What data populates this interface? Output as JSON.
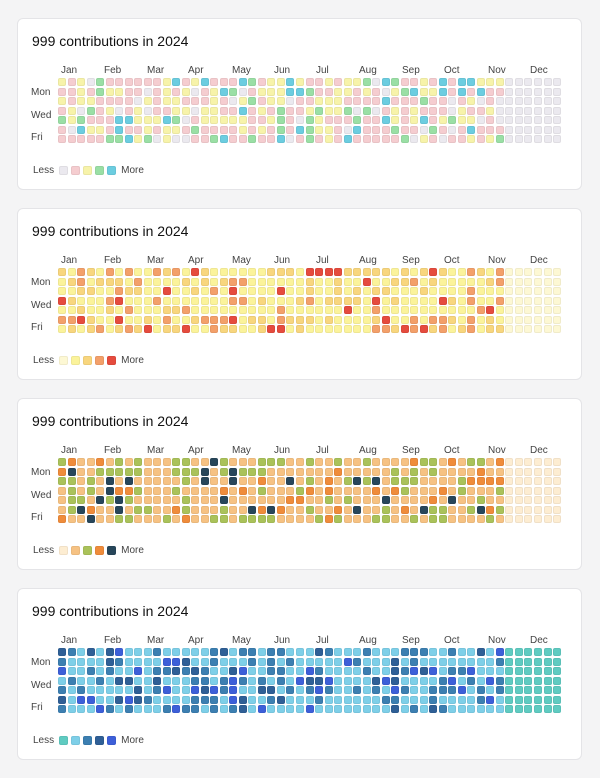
{
  "cards": [
    {
      "title": "999 contributions in 2024",
      "months": [
        "Jan",
        "Feb",
        "Mar",
        "Apr",
        "May",
        "Jun",
        "Jul",
        "Aug",
        "Sep",
        "Oct",
        "Nov",
        "Dec"
      ],
      "days": [
        "Mon",
        "Wed",
        "Fri"
      ],
      "legend_less": "Less",
      "legend_more": "More",
      "palette": [
        "#ebe9ef",
        "#f5cdd0",
        "#f7f3aa",
        "#9adfa5",
        "#6ccde0"
      ],
      "empty_color": "#ebe9ef"
    },
    {
      "title": "999 contributions in 2024",
      "months": [
        "Jan",
        "Feb",
        "Mar",
        "Apr",
        "May",
        "Jun",
        "Jul",
        "Aug",
        "Sep",
        "Oct",
        "Nov",
        "Dec"
      ],
      "days": [
        "Mon",
        "Wed",
        "Fri"
      ],
      "legend_less": "Less",
      "legend_more": "More",
      "palette": [
        "#fdf8d4",
        "#fbf39b",
        "#f8d67e",
        "#f3a06a",
        "#e54b3e"
      ],
      "empty_color": "#fdf8d4"
    },
    {
      "title": "999 contributions in 2024",
      "months": [
        "Jan",
        "Feb",
        "Mar",
        "Apr",
        "May",
        "Jun",
        "Jul",
        "Aug",
        "Sep",
        "Oct",
        "Nov",
        "Dec"
      ],
      "days": [
        "Mon",
        "Wed",
        "Fri"
      ],
      "legend_less": "Less",
      "legend_more": "More",
      "palette": [
        "#fdedd2",
        "#f6c283",
        "#aac25a",
        "#ef8c3b",
        "#27465a"
      ],
      "empty_color": "#fdedd2"
    },
    {
      "title": "999 contributions in 2024",
      "months": [
        "Jan",
        "Feb",
        "Mar",
        "Apr",
        "May",
        "Jun",
        "Jul",
        "Aug",
        "Sep",
        "Oct",
        "Nov",
        "Dec"
      ],
      "days": [
        "Mon",
        "Wed",
        "Fri"
      ],
      "legend_less": "Less",
      "legend_more": "More",
      "palette": [
        "#5fcbc1",
        "#7ecfe8",
        "#3c7fb1",
        "#2f5f96",
        "#3d5fd8"
      ],
      "empty_color": "#5fcbc1"
    }
  ]
}
